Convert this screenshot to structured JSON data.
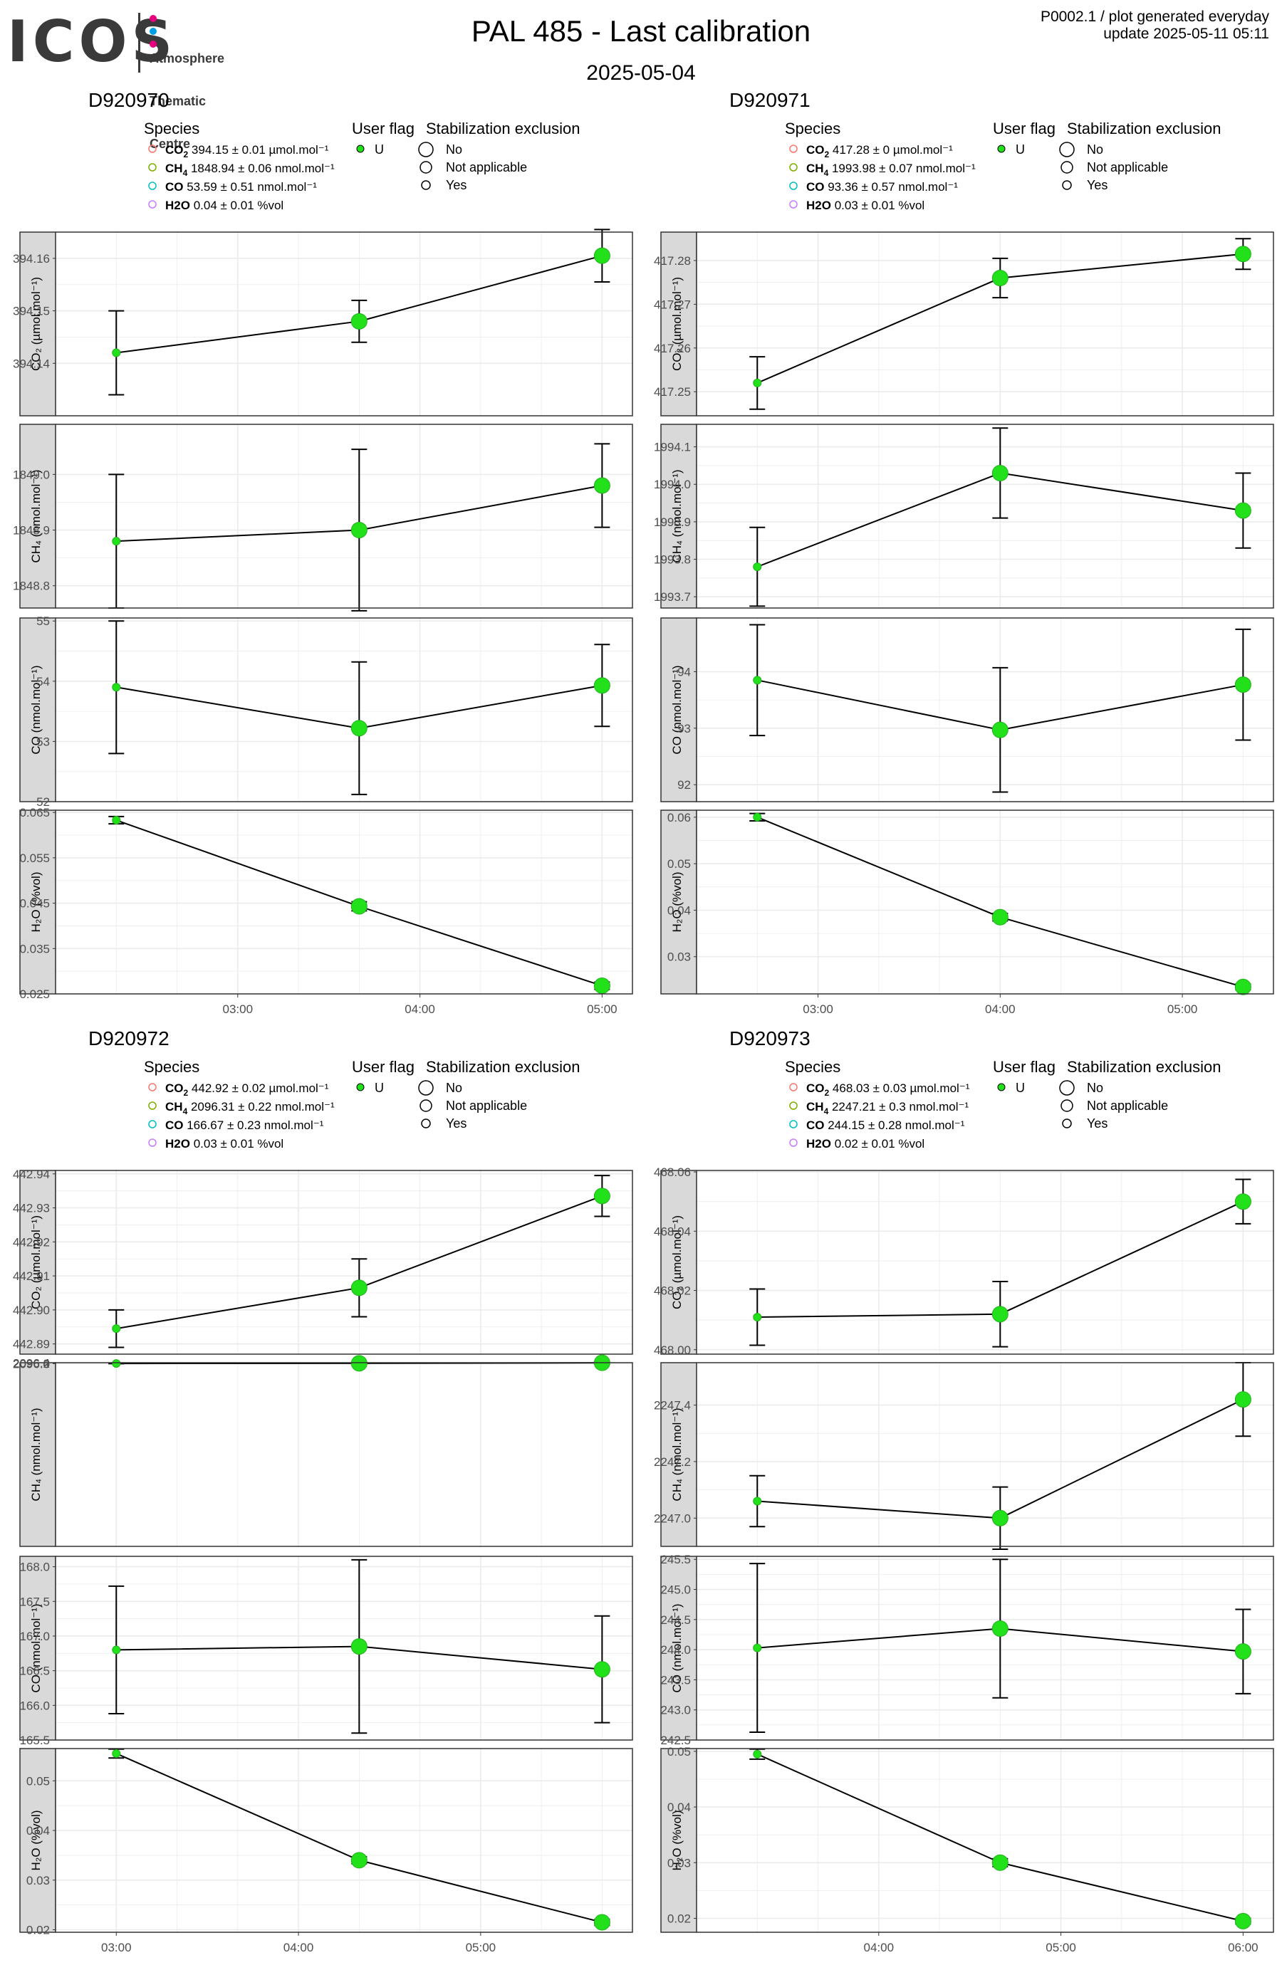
{
  "header": {
    "logo_text": "ICOS",
    "logo_sub": [
      "Atmosphere",
      "Thematic",
      "Centre"
    ],
    "logo_dot_colors": [
      "#e6007e",
      "#00a0e3",
      "#e6007e"
    ],
    "title": "PAL 485 - Last calibration",
    "date": "2025-05-04",
    "gen_line1": "P0002.1 / plot generated everyday",
    "gen_line2": "update  2025-05-11 05:11"
  },
  "legend": {
    "species_title": "Species",
    "flag_title": "User flag",
    "stab_title": "Stabilization exclusion",
    "flag_value": "U",
    "stab_items": [
      "No",
      "Not applicable",
      "Yes"
    ],
    "species_colors": [
      "#f8766d",
      "#7cae00",
      "#00bfc4",
      "#c77cff"
    ]
  },
  "colors": {
    "point": "#22e01a",
    "point_edge": "#1fb21a",
    "strip": "#d9d9d9",
    "grid": "#ebebeb"
  },
  "chart_data": [
    {
      "type": "line",
      "title": "D920970",
      "species_legend": [
        {
          "name": "CO2",
          "value": "394.15 ± 0.01",
          "unit": "µmol.mol⁻¹"
        },
        {
          "name": "CH4",
          "value": "1848.94 ± 0.06",
          "unit": "nmol.mol⁻¹"
        },
        {
          "name": "CO",
          "value": "53.59 ± 0.51",
          "unit": "nmol.mol⁻¹"
        },
        {
          "name": "H2O",
          "value": "0.04 ± 0.01",
          "unit": "%vol"
        }
      ],
      "x": [
        "02:20",
        "03:40",
        "05:00"
      ],
      "x_range": [
        "02:00",
        "05:10"
      ],
      "x_ticks": [
        "03:00",
        "04:00",
        "05:00"
      ],
      "panels": [
        {
          "species": "CO2",
          "ylabel": "CO₂ (µmol.mol⁻¹)",
          "ylim": [
            394.13,
            394.165
          ],
          "ticks": [
            "394.14",
            "394.15",
            "394.16"
          ],
          "tick_values": [
            394.14,
            394.15,
            394.16
          ],
          "values": [
            394.142,
            394.148,
            394.1605
          ],
          "err": [
            0.008,
            0.004,
            0.005
          ],
          "sizes": [
            "small",
            "big",
            "big"
          ]
        },
        {
          "species": "CH4",
          "ylabel": "CH₄ (nmol.mol⁻¹)",
          "ylim": [
            1848.76,
            1849.09
          ],
          "ticks": [
            "1848.8",
            "1848.9",
            "1849.0"
          ],
          "tick_values": [
            1848.8,
            1848.9,
            1849.0
          ],
          "values": [
            1848.88,
            1848.9,
            1848.98
          ],
          "err": [
            0.12,
            0.145,
            0.075
          ],
          "sizes": [
            "small",
            "big",
            "big"
          ]
        },
        {
          "species": "CO",
          "ylabel": "CO (nmol.mol⁻¹)",
          "ylim": [
            52.0,
            55.05
          ],
          "ticks": [
            "52",
            "53",
            "54",
            "55"
          ],
          "tick_values": [
            52,
            53,
            54,
            55
          ],
          "values": [
            53.9,
            53.22,
            53.93
          ],
          "err": [
            1.1,
            1.1,
            0.68
          ],
          "sizes": [
            "small",
            "big",
            "big"
          ]
        },
        {
          "species": "H2O",
          "ylabel": "H₂O (%vol)",
          "ylim": [
            0.025,
            0.0655
          ],
          "ticks": [
            "0.025",
            "0.035",
            "0.045",
            "0.055",
            "0.065"
          ],
          "tick_values": [
            0.025,
            0.035,
            0.045,
            0.055,
            0.065
          ],
          "values": [
            0.0633,
            0.0443,
            0.0268
          ],
          "err": [
            0.0008,
            0.001,
            0.0008
          ],
          "sizes": [
            "small",
            "big",
            "big"
          ]
        }
      ]
    },
    {
      "type": "line",
      "title": "D920971",
      "species_legend": [
        {
          "name": "CO2",
          "value": "417.28 ± 0",
          "unit": "µmol.mol⁻¹"
        },
        {
          "name": "CH4",
          "value": "1993.98 ± 0.07",
          "unit": "nmol.mol⁻¹"
        },
        {
          "name": "CO",
          "value": "93.36 ± 0.57",
          "unit": "nmol.mol⁻¹"
        },
        {
          "name": "H2O",
          "value": "0.03 ± 0.01",
          "unit": "%vol"
        }
      ],
      "x": [
        "02:40",
        "04:00",
        "05:20"
      ],
      "x_range": [
        "02:20",
        "05:30"
      ],
      "x_ticks": [
        "03:00",
        "04:00",
        "05:00"
      ],
      "panels": [
        {
          "species": "CO2",
          "ylabel": "CO₂ (µmol.mol⁻¹)",
          "ylim": [
            417.2445,
            417.2865
          ],
          "ticks": [
            "417.25",
            "417.26",
            "417.27",
            "417.28"
          ],
          "tick_values": [
            417.25,
            417.26,
            417.27,
            417.28
          ],
          "values": [
            417.252,
            417.276,
            417.2815
          ],
          "err": [
            0.006,
            0.0045,
            0.0035
          ],
          "sizes": [
            "small",
            "big",
            "big"
          ]
        },
        {
          "species": "CH4",
          "ylabel": "CH₄ (nmol.mol⁻¹)",
          "ylim": [
            1993.67,
            1994.16
          ],
          "ticks": [
            "1993.7",
            "1993.8",
            "1993.9",
            "1994.0",
            "1994.1"
          ],
          "tick_values": [
            1993.7,
            1993.8,
            1993.9,
            1994.0,
            1994.1
          ],
          "values": [
            1993.78,
            1994.03,
            1993.93
          ],
          "err": [
            0.105,
            0.12,
            0.1
          ],
          "sizes": [
            "small",
            "big",
            "big"
          ]
        },
        {
          "species": "CO",
          "ylabel": "CO (nmol.mol⁻¹)",
          "ylim": [
            91.7,
            94.95
          ],
          "ticks": [
            "92",
            "93",
            "94"
          ],
          "tick_values": [
            92,
            93,
            94
          ],
          "values": [
            93.85,
            92.97,
            93.77
          ],
          "err": [
            0.98,
            1.1,
            0.98
          ],
          "sizes": [
            "small",
            "big",
            "big"
          ]
        },
        {
          "species": "H2O",
          "ylabel": "H₂O (%vol)",
          "ylim": [
            0.022,
            0.0615
          ],
          "ticks": [
            "0.03",
            "0.04",
            "0.05",
            "0.06"
          ],
          "tick_values": [
            0.03,
            0.04,
            0.05,
            0.06
          ],
          "values": [
            0.06,
            0.0385,
            0.0235
          ],
          "err": [
            0.0008,
            0.0008,
            0.0006
          ],
          "sizes": [
            "small",
            "big",
            "big"
          ]
        }
      ]
    },
    {
      "type": "line",
      "title": "D920972",
      "species_legend": [
        {
          "name": "CO2",
          "value": "442.92 ± 0.02",
          "unit": "µmol.mol⁻¹"
        },
        {
          "name": "CH4",
          "value": "2096.31 ± 0.22",
          "unit": "nmol.mol⁻¹"
        },
        {
          "name": "CO",
          "value": "166.67 ± 0.23",
          "unit": "nmol.mol⁻¹"
        },
        {
          "name": "H2O",
          "value": "0.03 ± 0.01",
          "unit": "%vol"
        }
      ],
      "x": [
        "03:00",
        "04:20",
        "05:40"
      ],
      "x_range": [
        "02:40",
        "05:50"
      ],
      "x_ticks": [
        "03:00",
        "04:00",
        "05:00"
      ],
      "panels": [
        {
          "species": "CO2",
          "ylabel": "CO₂ (µmol.mol⁻¹)",
          "ylim": [
            442.887,
            442.941
          ],
          "ticks": [
            "442.89",
            "442.90",
            "442.91",
            "442.92",
            "442.93",
            "442.94"
          ],
          "tick_values": [
            442.89,
            442.9,
            442.91,
            442.92,
            442.93,
            442.94
          ],
          "values": [
            442.8945,
            442.9065,
            442.9335
          ],
          "err": [
            0.0055,
            0.0085,
            0.006
          ],
          "sizes": [
            "small",
            "big",
            "big"
          ]
        },
        {
          "species": "CH4",
          "ylabel": "CH₄ (nmol.mol⁻¹)",
          "ylim": [
            1995.99,
            2096.51
          ],
          "ticks": [
            "2096.0",
            "2096.2",
            "2096.4"
          ],
          "tick_values": [
            2096.0,
            2096.2,
            2096.4
          ],
          "values": [
            2096.09,
            2096.15,
            2096.46
          ],
          "err": [
            0.095,
            0.105,
            0.085
          ],
          "sizes": [
            "small",
            "big",
            "big"
          ]
        },
        {
          "species": "CO",
          "ylabel": "CO (nmol.mol⁻¹)",
          "ylim": [
            165.5,
            168.15
          ],
          "ticks": [
            "165.5",
            "166.0",
            "166.5",
            "167.0",
            "167.5",
            "168.0"
          ],
          "tick_values": [
            165.5,
            166.0,
            166.5,
            167.0,
            167.5,
            168.0
          ],
          "values": [
            166.8,
            166.85,
            166.52
          ],
          "err": [
            0.92,
            1.25,
            0.77
          ],
          "sizes": [
            "small",
            "big",
            "big"
          ]
        },
        {
          "species": "H2O",
          "ylabel": "H₂O (%vol)",
          "ylim": [
            0.0195,
            0.0565
          ],
          "ticks": [
            "0.02",
            "0.03",
            "0.04",
            "0.05"
          ],
          "tick_values": [
            0.02,
            0.03,
            0.04,
            0.05
          ],
          "values": [
            0.0555,
            0.034,
            0.0215
          ],
          "err": [
            0.0009,
            0.0007,
            0.0006
          ],
          "sizes": [
            "small",
            "big",
            "big"
          ]
        }
      ]
    },
    {
      "type": "line",
      "title": "D920973",
      "species_legend": [
        {
          "name": "CO2",
          "value": "468.03 ± 0.03",
          "unit": "µmol.mol⁻¹"
        },
        {
          "name": "CH4",
          "value": "2247.21 ± 0.3",
          "unit": "nmol.mol⁻¹"
        },
        {
          "name": "CO",
          "value": "244.15 ± 0.28",
          "unit": "nmol.mol⁻¹"
        },
        {
          "name": "H2O",
          "value": "0.02 ± 0.01",
          "unit": "%vol"
        }
      ],
      "x": [
        "03:20",
        "04:40",
        "06:00"
      ],
      "x_range": [
        "03:00",
        "06:10"
      ],
      "x_ticks": [
        "04:00",
        "05:00",
        "06:00"
      ],
      "panels": [
        {
          "species": "CO2",
          "ylabel": "CO₂ (µmol.mol⁻¹)",
          "ylim": [
            467.9985,
            468.0605
          ],
          "ticks": [
            "468.00",
            "468.02",
            "468.04",
            "468.06"
          ],
          "tick_values": [
            468.0,
            468.02,
            468.04,
            468.06
          ],
          "values": [
            468.011,
            468.012,
            468.05
          ],
          "err": [
            0.0095,
            0.011,
            0.0075
          ],
          "sizes": [
            "small",
            "big",
            "big"
          ]
        },
        {
          "species": "CH4",
          "ylabel": "CH₄ (nmol.mol⁻¹)",
          "ylim": [
            2246.9,
            2247.55
          ],
          "ticks": [
            "2247.0",
            "2247.2",
            "2247.4"
          ],
          "tick_values": [
            2247.0,
            2247.2,
            2247.4
          ],
          "values": [
            2247.06,
            2247.0,
            2247.42
          ],
          "err": [
            0.09,
            0.11,
            0.13
          ],
          "sizes": [
            "small",
            "big",
            "big"
          ]
        },
        {
          "species": "CO",
          "ylabel": "CO (nmol.mol⁻¹)",
          "ylim": [
            242.5,
            245.55
          ],
          "ticks": [
            "242.5",
            "243.0",
            "243.5",
            "244.0",
            "244.5",
            "245.0",
            "245.5"
          ],
          "tick_values": [
            242.5,
            243.0,
            243.5,
            244.0,
            244.5,
            245.0,
            245.5
          ],
          "values": [
            244.03,
            244.35,
            243.97
          ],
          "err": [
            1.4,
            1.15,
            0.7
          ],
          "sizes": [
            "small",
            "big",
            "big"
          ]
        },
        {
          "species": "H2O",
          "ylabel": "H₂O (%vol)",
          "ylim": [
            0.0175,
            0.0505
          ],
          "ticks": [
            "0.02",
            "0.03",
            "0.04",
            "0.05"
          ],
          "tick_values": [
            0.02,
            0.03,
            0.04,
            0.05
          ],
          "values": [
            0.0495,
            0.03,
            0.0195
          ],
          "err": [
            0.0009,
            0.0007,
            0.0005
          ],
          "sizes": [
            "small",
            "big",
            "big"
          ]
        }
      ]
    }
  ]
}
